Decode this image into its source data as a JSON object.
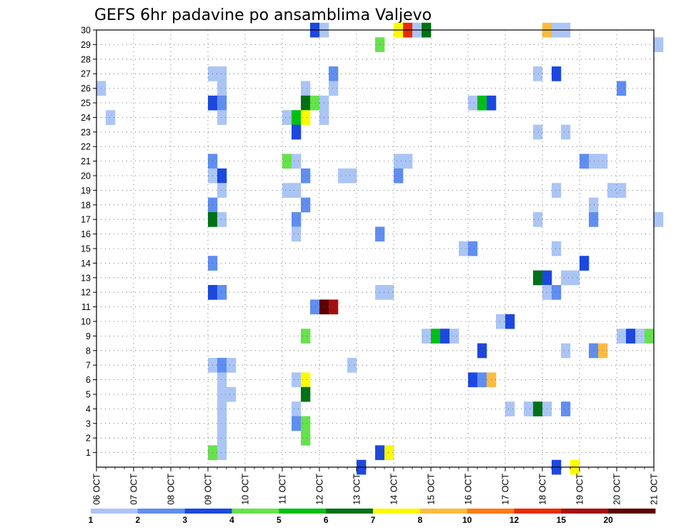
{
  "chart_data": {
    "type": "heatmap",
    "title": "GEFS 6hr padavine po ansamblima Valjevo",
    "x_tick_labels": [
      "06 OCT",
      "07 OCT",
      "08 OCT",
      "09 OCT",
      "10 OCT",
      "11 OCT",
      "12 OCT",
      "13 OCT",
      "14 OCT",
      "15 OCT",
      "16 OCT",
      "17 OCT",
      "18 OCT",
      "19 OCT",
      "20 OCT",
      "21 OCT"
    ],
    "x_range_days": [
      6,
      21
    ],
    "x_step_days": 0.25,
    "y_tick_labels": [
      "1",
      "2",
      "3",
      "4",
      "5",
      "6",
      "7",
      "8",
      "9",
      "10",
      "11",
      "12",
      "13",
      "14",
      "15",
      "16",
      "17",
      "18",
      "19",
      "20",
      "21",
      "22",
      "23",
      "24",
      "25",
      "26",
      "27",
      "28",
      "29",
      "30"
    ],
    "y_range": [
      0,
      30
    ],
    "grid": "dotted",
    "colorbar": {
      "tick_labels": [
        "1",
        "2",
        "3",
        "4",
        "5",
        "6",
        "7",
        "8",
        "10",
        "12",
        "15",
        "20"
      ],
      "colors": [
        "#abc5f5",
        "#5f8ef0",
        "#1c48e0",
        "#66e24c",
        "#00bf16",
        "#007216",
        "#fafa00",
        "#fcbb40",
        "#fa7a19",
        "#e72c05",
        "#a60e0e",
        "#5c0000"
      ]
    },
    "cells": [
      {
        "t": 11.75,
        "m": 30,
        "v": 3
      },
      {
        "t": 12.0,
        "m": 30,
        "v": 1
      },
      {
        "t": 14.0,
        "m": 30,
        "v": 7
      },
      {
        "t": 14.25,
        "m": 30,
        "v": 12
      },
      {
        "t": 14.5,
        "m": 30,
        "v": 1
      },
      {
        "t": 14.75,
        "m": 30,
        "v": 6
      },
      {
        "t": 18.0,
        "m": 30,
        "v": 8
      },
      {
        "t": 18.25,
        "m": 30,
        "v": 1
      },
      {
        "t": 18.5,
        "m": 30,
        "v": 1
      },
      {
        "t": 13.5,
        "m": 29,
        "v": 4
      },
      {
        "t": 21.0,
        "m": 29,
        "v": 1
      },
      {
        "t": 9.0,
        "m": 27,
        "v": 1
      },
      {
        "t": 9.25,
        "m": 27,
        "v": 1
      },
      {
        "t": 12.25,
        "m": 27,
        "v": 2
      },
      {
        "t": 17.75,
        "m": 27,
        "v": 1
      },
      {
        "t": 18.25,
        "m": 27,
        "v": 3
      },
      {
        "t": 6.0,
        "m": 26,
        "v": 1
      },
      {
        "t": 9.25,
        "m": 26,
        "v": 1
      },
      {
        "t": 11.5,
        "m": 26,
        "v": 1
      },
      {
        "t": 12.25,
        "m": 26,
        "v": 1
      },
      {
        "t": 20.0,
        "m": 26,
        "v": 2
      },
      {
        "t": 9.0,
        "m": 25,
        "v": 3
      },
      {
        "t": 9.25,
        "m": 25,
        "v": 2
      },
      {
        "t": 11.5,
        "m": 25,
        "v": 6
      },
      {
        "t": 11.75,
        "m": 25,
        "v": 4
      },
      {
        "t": 12.0,
        "m": 25,
        "v": 1
      },
      {
        "t": 16.0,
        "m": 25,
        "v": 1
      },
      {
        "t": 16.25,
        "m": 25,
        "v": 5
      },
      {
        "t": 16.5,
        "m": 25,
        "v": 3
      },
      {
        "t": 6.25,
        "m": 24,
        "v": 1
      },
      {
        "t": 9.25,
        "m": 24,
        "v": 1
      },
      {
        "t": 11.0,
        "m": 24,
        "v": 1
      },
      {
        "t": 11.25,
        "m": 24,
        "v": 5
      },
      {
        "t": 11.5,
        "m": 24,
        "v": 7
      },
      {
        "t": 12.0,
        "m": 24,
        "v": 1
      },
      {
        "t": 11.25,
        "m": 23,
        "v": 3
      },
      {
        "t": 17.75,
        "m": 23,
        "v": 1
      },
      {
        "t": 18.5,
        "m": 23,
        "v": 1
      },
      {
        "t": 9.0,
        "m": 21,
        "v": 2
      },
      {
        "t": 11.0,
        "m": 21,
        "v": 4
      },
      {
        "t": 11.25,
        "m": 21,
        "v": 1
      },
      {
        "t": 14.0,
        "m": 21,
        "v": 1
      },
      {
        "t": 14.25,
        "m": 21,
        "v": 1
      },
      {
        "t": 19.0,
        "m": 21,
        "v": 2
      },
      {
        "t": 19.25,
        "m": 21,
        "v": 1
      },
      {
        "t": 19.5,
        "m": 21,
        "v": 1
      },
      {
        "t": 9.0,
        "m": 20,
        "v": 1
      },
      {
        "t": 9.25,
        "m": 20,
        "v": 3
      },
      {
        "t": 11.5,
        "m": 20,
        "v": 2
      },
      {
        "t": 12.5,
        "m": 20,
        "v": 1
      },
      {
        "t": 12.75,
        "m": 20,
        "v": 1
      },
      {
        "t": 14.0,
        "m": 20,
        "v": 2
      },
      {
        "t": 9.25,
        "m": 19,
        "v": 1
      },
      {
        "t": 11.0,
        "m": 19,
        "v": 1
      },
      {
        "t": 11.25,
        "m": 19,
        "v": 1
      },
      {
        "t": 18.25,
        "m": 19,
        "v": 1
      },
      {
        "t": 19.75,
        "m": 19,
        "v": 1
      },
      {
        "t": 20.0,
        "m": 19,
        "v": 1
      },
      {
        "t": 9.0,
        "m": 18,
        "v": 2
      },
      {
        "t": 11.5,
        "m": 18,
        "v": 2
      },
      {
        "t": 19.25,
        "m": 18,
        "v": 1
      },
      {
        "t": 9.0,
        "m": 17,
        "v": 6
      },
      {
        "t": 9.25,
        "m": 17,
        "v": 1
      },
      {
        "t": 11.25,
        "m": 17,
        "v": 2
      },
      {
        "t": 17.75,
        "m": 17,
        "v": 1
      },
      {
        "t": 19.25,
        "m": 17,
        "v": 2
      },
      {
        "t": 21.0,
        "m": 17,
        "v": 1
      },
      {
        "t": 11.25,
        "m": 16,
        "v": 1
      },
      {
        "t": 13.5,
        "m": 16,
        "v": 2
      },
      {
        "t": 15.75,
        "m": 15,
        "v": 1
      },
      {
        "t": 16.0,
        "m": 15,
        "v": 2
      },
      {
        "t": 18.25,
        "m": 15,
        "v": 1
      },
      {
        "t": 9.0,
        "m": 14,
        "v": 2
      },
      {
        "t": 19.0,
        "m": 14,
        "v": 3
      },
      {
        "t": 17.75,
        "m": 13,
        "v": 6
      },
      {
        "t": 18.0,
        "m": 13,
        "v": 3
      },
      {
        "t": 18.5,
        "m": 13,
        "v": 1
      },
      {
        "t": 18.75,
        "m": 13,
        "v": 1
      },
      {
        "t": 9.0,
        "m": 12,
        "v": 3
      },
      {
        "t": 9.25,
        "m": 12,
        "v": 2
      },
      {
        "t": 13.5,
        "m": 12,
        "v": 1
      },
      {
        "t": 13.75,
        "m": 12,
        "v": 1
      },
      {
        "t": 18.0,
        "m": 12,
        "v": 1
      },
      {
        "t": 18.25,
        "m": 12,
        "v": 2
      },
      {
        "t": 11.75,
        "m": 11,
        "v": 2
      },
      {
        "t": 12.0,
        "m": 11,
        "v": 20
      },
      {
        "t": 12.25,
        "m": 11,
        "v": 15
      },
      {
        "t": 16.75,
        "m": 10,
        "v": 1
      },
      {
        "t": 17.0,
        "m": 10,
        "v": 3
      },
      {
        "t": 11.5,
        "m": 9,
        "v": 4
      },
      {
        "t": 14.75,
        "m": 9,
        "v": 1
      },
      {
        "t": 15.0,
        "m": 9,
        "v": 5
      },
      {
        "t": 15.25,
        "m": 9,
        "v": 3
      },
      {
        "t": 15.5,
        "m": 9,
        "v": 1
      },
      {
        "t": 20.0,
        "m": 9,
        "v": 1
      },
      {
        "t": 20.25,
        "m": 9,
        "v": 3
      },
      {
        "t": 20.5,
        "m": 9,
        "v": 1
      },
      {
        "t": 20.75,
        "m": 9,
        "v": 4
      },
      {
        "t": 16.25,
        "m": 8,
        "v": 3
      },
      {
        "t": 18.5,
        "m": 8,
        "v": 1
      },
      {
        "t": 19.25,
        "m": 8,
        "v": 2
      },
      {
        "t": 19.5,
        "m": 8,
        "v": 8
      },
      {
        "t": 9.0,
        "m": 7,
        "v": 1
      },
      {
        "t": 9.25,
        "m": 7,
        "v": 2
      },
      {
        "t": 9.5,
        "m": 7,
        "v": 1
      },
      {
        "t": 12.75,
        "m": 7,
        "v": 1
      },
      {
        "t": 9.25,
        "m": 6,
        "v": 1
      },
      {
        "t": 11.25,
        "m": 6,
        "v": 1
      },
      {
        "t": 11.5,
        "m": 6,
        "v": 7
      },
      {
        "t": 16.0,
        "m": 6,
        "v": 3
      },
      {
        "t": 16.25,
        "m": 6,
        "v": 2
      },
      {
        "t": 16.5,
        "m": 6,
        "v": 8
      },
      {
        "t": 9.25,
        "m": 5,
        "v": 1
      },
      {
        "t": 9.5,
        "m": 5,
        "v": 1
      },
      {
        "t": 11.5,
        "m": 5,
        "v": 6
      },
      {
        "t": 9.25,
        "m": 4,
        "v": 1
      },
      {
        "t": 11.25,
        "m": 4,
        "v": 1
      },
      {
        "t": 17.0,
        "m": 4,
        "v": 1
      },
      {
        "t": 17.5,
        "m": 4,
        "v": 1
      },
      {
        "t": 17.75,
        "m": 4,
        "v": 6
      },
      {
        "t": 18.0,
        "m": 4,
        "v": 1
      },
      {
        "t": 18.5,
        "m": 4,
        "v": 2
      },
      {
        "t": 9.25,
        "m": 3,
        "v": 1
      },
      {
        "t": 11.25,
        "m": 3,
        "v": 2
      },
      {
        "t": 11.5,
        "m": 3,
        "v": 4
      },
      {
        "t": 9.25,
        "m": 2,
        "v": 1
      },
      {
        "t": 11.5,
        "m": 2,
        "v": 4
      },
      {
        "t": 9.0,
        "m": 1,
        "v": 4
      },
      {
        "t": 9.25,
        "m": 1,
        "v": 1
      },
      {
        "t": 13.5,
        "m": 1,
        "v": 3
      },
      {
        "t": 13.75,
        "m": 1,
        "v": 7
      },
      {
        "t": 13.0,
        "m": 0,
        "v": 3
      },
      {
        "t": 18.25,
        "m": 0,
        "v": 3
      },
      {
        "t": 18.75,
        "m": 0,
        "v": 7
      }
    ]
  }
}
